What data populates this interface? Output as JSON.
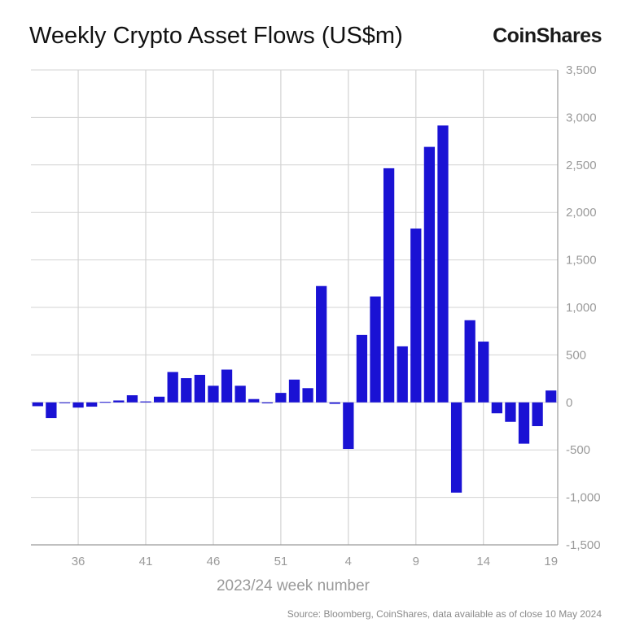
{
  "title": "Weekly Crypto Asset Flows (US$m)",
  "brand": "CoinShares",
  "source": "Source: Bloomberg, CoinShares, data available as of close 10 May 2024",
  "colors": {
    "bar": "#1a12d4",
    "grid": "#d3d3d3",
    "axis": "#9a9a9a"
  },
  "chart_data": {
    "type": "bar",
    "xlabel": "2023/24 week number",
    "ylabel": "",
    "ylim": [
      -1500,
      3500
    ],
    "yticks": [
      3500,
      3000,
      2500,
      2000,
      1500,
      1000,
      500,
      0,
      -500,
      -1000,
      -1500
    ],
    "ytick_labels": [
      "3,500",
      "3,000",
      "2,500",
      "2,000",
      "1,500",
      "1,000",
      "500",
      "0",
      "-500",
      "-1,000",
      "-1,500"
    ],
    "xtick_labels": [
      {
        "index": 3,
        "label": "36"
      },
      {
        "index": 8,
        "label": "41"
      },
      {
        "index": 13,
        "label": "46"
      },
      {
        "index": 18,
        "label": "51"
      },
      {
        "index": 23,
        "label": "4"
      },
      {
        "index": 28,
        "label": "9"
      },
      {
        "index": 33,
        "label": "14"
      },
      {
        "index": 38,
        "label": "19"
      }
    ],
    "grid": "vertical lines at x ticks, horizontal lines at y ticks",
    "legend": "none",
    "values": [
      -40,
      -165,
      0,
      -55,
      -45,
      5,
      20,
      75,
      10,
      60,
      320,
      255,
      290,
      175,
      345,
      175,
      35,
      -10,
      100,
      240,
      150,
      1225,
      -15,
      -490,
      710,
      1115,
      2465,
      590,
      1830,
      2690,
      2915,
      -950,
      865,
      640,
      -115,
      -205,
      -435,
      -250,
      125
    ]
  }
}
